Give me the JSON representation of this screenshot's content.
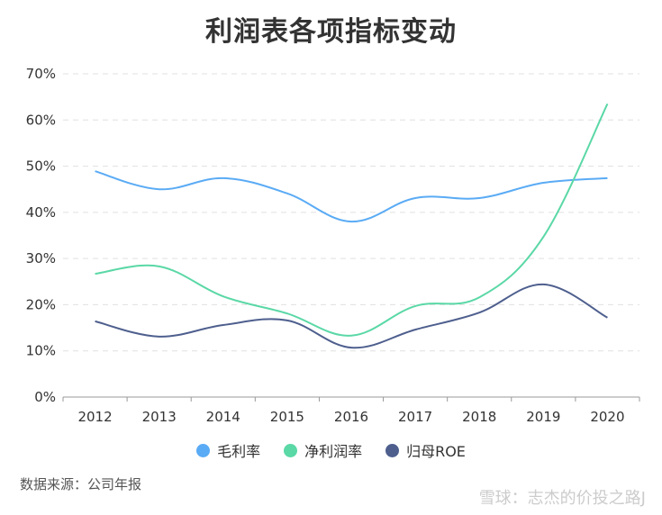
{
  "chart_data": {
    "type": "line",
    "title": "利润表各项指标变动",
    "categories": [
      "2012",
      "2013",
      "2014",
      "2015",
      "2016",
      "2017",
      "2018",
      "2019",
      "2020"
    ],
    "ylim": [
      0,
      70
    ],
    "yticks": [
      "0%",
      "10%",
      "20%",
      "30%",
      "40%",
      "50%",
      "60%",
      "70%"
    ],
    "grid": true,
    "legend_position": "bottom",
    "series": [
      {
        "name": "毛利率",
        "color": "#5aabf5",
        "values": [
          48.9,
          45.0,
          47.4,
          44.1,
          38.0,
          43.1,
          43.1,
          46.4,
          47.4
        ]
      },
      {
        "name": "净利润率",
        "color": "#5ad8a6",
        "values": [
          26.7,
          28.3,
          21.8,
          18.1,
          13.3,
          19.7,
          21.6,
          34.7,
          63.5
        ]
      },
      {
        "name": "归母ROE",
        "color": "#4e5f8e",
        "values": [
          16.4,
          13.1,
          15.6,
          16.6,
          10.7,
          14.6,
          18.3,
          24.4,
          17.2
        ]
      }
    ]
  },
  "source": "数据来源：公司年报",
  "watermark": "雪球：志杰的价投之路J"
}
